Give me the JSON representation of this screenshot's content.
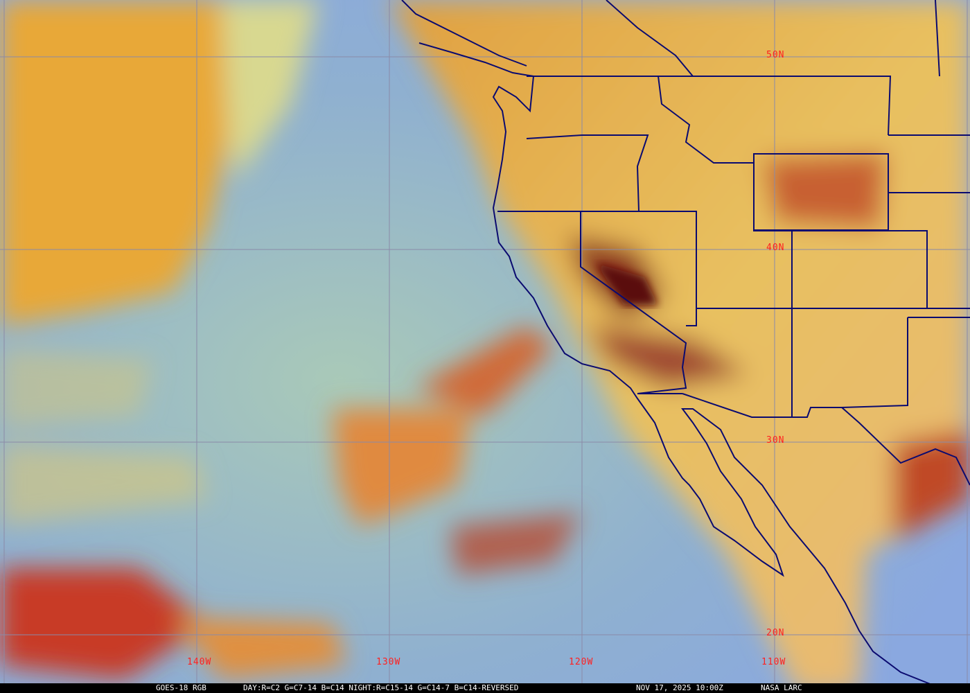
{
  "map": {
    "latitude_labels": [
      "50N",
      "40N",
      "30N",
      "20N"
    ],
    "longitude_labels": [
      "140W",
      "130W",
      "120W",
      "110W"
    ],
    "grid_color": "#8a8aa8",
    "border_color": "#0a0a70",
    "label_color": "#ff2020"
  },
  "caption": {
    "satellite": "GOES-18 RGB",
    "recipe": "DAY:R=C2 G=C7-14 B=C14 NIGHT:R=C15-14 G=C14-7 B=C14-REVERSED",
    "timestamp": "NOV 17, 2025 10:00Z",
    "source": "NASA LARC"
  }
}
